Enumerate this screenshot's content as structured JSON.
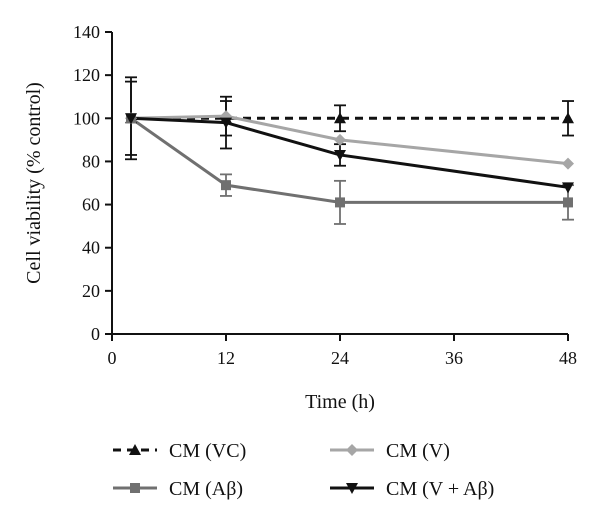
{
  "chart_data": {
    "type": "line",
    "xlabel": "Time (h)",
    "ylabel": "Cell viability (% control)",
    "xlim": [
      0,
      48
    ],
    "ylim": [
      0,
      140
    ],
    "xticks": [
      0,
      12,
      24,
      36,
      48
    ],
    "yticks": [
      0,
      20,
      40,
      60,
      80,
      100,
      120,
      140
    ],
    "grid": false,
    "legend_position": "bottom",
    "series": [
      {
        "name": "CM (VC)",
        "color": "#111111",
        "dash": "dashed",
        "marker": "triangle-up",
        "x": [
          2,
          12,
          24,
          48
        ],
        "y": [
          100,
          100,
          100,
          100
        ],
        "err": [
          17,
          8,
          6,
          8
        ]
      },
      {
        "name": "CM (V)",
        "color": "#a6a6a6",
        "dash": "solid",
        "marker": "diamond",
        "x": [
          2,
          12,
          24,
          48
        ],
        "y": [
          100,
          101,
          90,
          79
        ],
        "err": [
          0,
          0,
          0,
          0
        ]
      },
      {
        "name": "CM (Aβ)",
        "color": "#707070",
        "dash": "solid",
        "marker": "square",
        "x": [
          2,
          12,
          24,
          48
        ],
        "y": [
          100,
          69,
          61,
          61
        ],
        "err": [
          0,
          5,
          10,
          8
        ]
      },
      {
        "name": "CM (V + Aβ)",
        "color": "#111111",
        "dash": "solid",
        "marker": "triangle-down",
        "x": [
          2,
          12,
          24,
          48
        ],
        "y": [
          100,
          98,
          83,
          68
        ],
        "err": [
          19,
          12,
          5,
          0
        ]
      }
    ]
  }
}
